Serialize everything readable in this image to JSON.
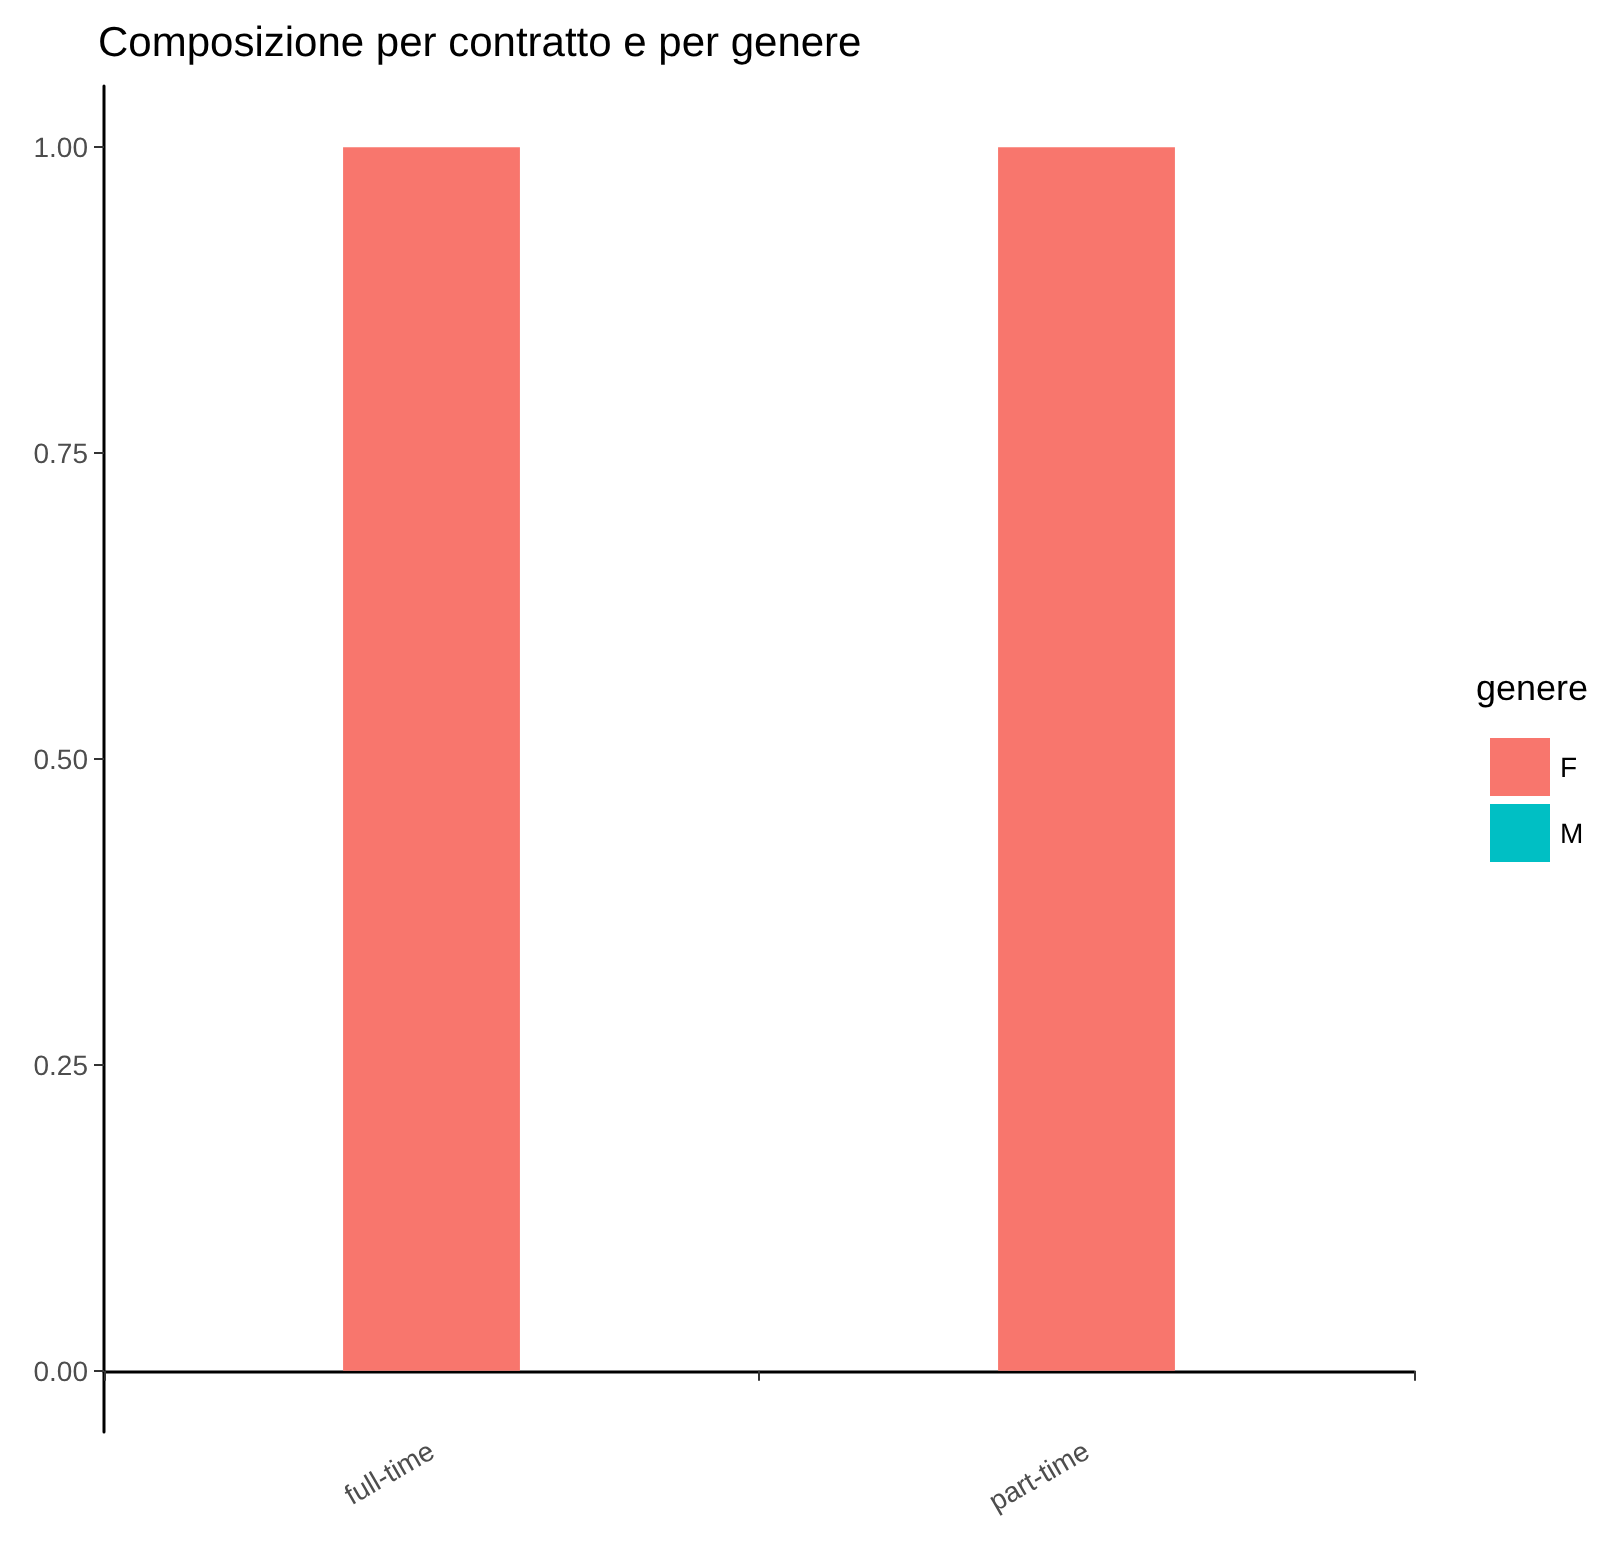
{
  "chart_data": {
    "type": "bar",
    "title": "Composizione per contratto e per genere",
    "categories": [
      "full-time",
      "part-time"
    ],
    "series": [
      {
        "name": "F",
        "color": "#f8766d",
        "values": [
          1,
          1
        ]
      },
      {
        "name": "M",
        "color": "#00bfc4",
        "values": [
          0,
          0
        ]
      }
    ],
    "stacked": true,
    "ylim": [
      -0.05,
      1.05
    ],
    "yticks": [
      {
        "value": 0,
        "label": "0.00"
      },
      {
        "value": 0.25,
        "label": "0.25"
      },
      {
        "value": 0.5,
        "label": "0.50"
      },
      {
        "value": 0.75,
        "label": "0.75"
      },
      {
        "value": 1,
        "label": "1.00"
      }
    ],
    "legend": "right",
    "legend_title": "genere"
  }
}
